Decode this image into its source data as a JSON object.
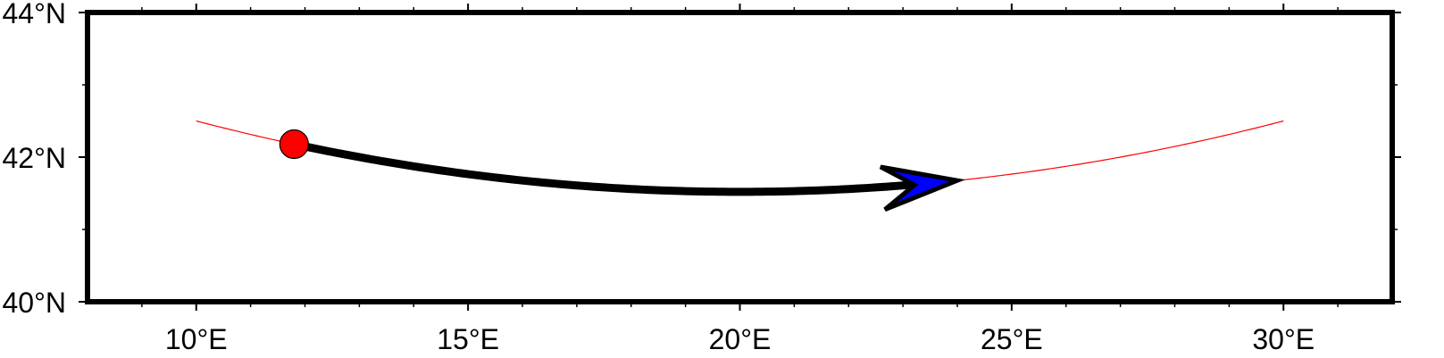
{
  "map": {
    "lon_range": [
      8,
      32
    ],
    "lat_range": [
      40,
      44
    ],
    "lon_tick_labels": [
      {
        "value": 10,
        "label": "10°E"
      },
      {
        "value": 15,
        "label": "15°E"
      },
      {
        "value": 20,
        "label": "20°E"
      },
      {
        "value": 25,
        "label": "25°E"
      },
      {
        "value": 30,
        "label": "30°E"
      }
    ],
    "lat_tick_labels": [
      {
        "value": 40,
        "label": "40°N"
      },
      {
        "value": 42,
        "label": "42°N"
      },
      {
        "value": 44,
        "label": "44°N"
      }
    ],
    "lon_minor_ticks": [
      9,
      11,
      12,
      13,
      14,
      16,
      17,
      18,
      19,
      21,
      22,
      23,
      24,
      26,
      27,
      28,
      29,
      31
    ],
    "lat_minor_ticks": [
      41,
      43
    ],
    "great_circle": {
      "color": "#ff0000",
      "points": [
        [
          10,
          42.5
        ],
        [
          20,
          41.52
        ],
        [
          30,
          42.5
        ]
      ]
    },
    "arrow": {
      "color": "#000000",
      "head_fill": "#0000ff",
      "start_lon": 11.8,
      "end_lon": 24.0
    },
    "start_marker": {
      "lon": 11.8,
      "fill": "#ff0000",
      "symbol": "circle"
    }
  }
}
